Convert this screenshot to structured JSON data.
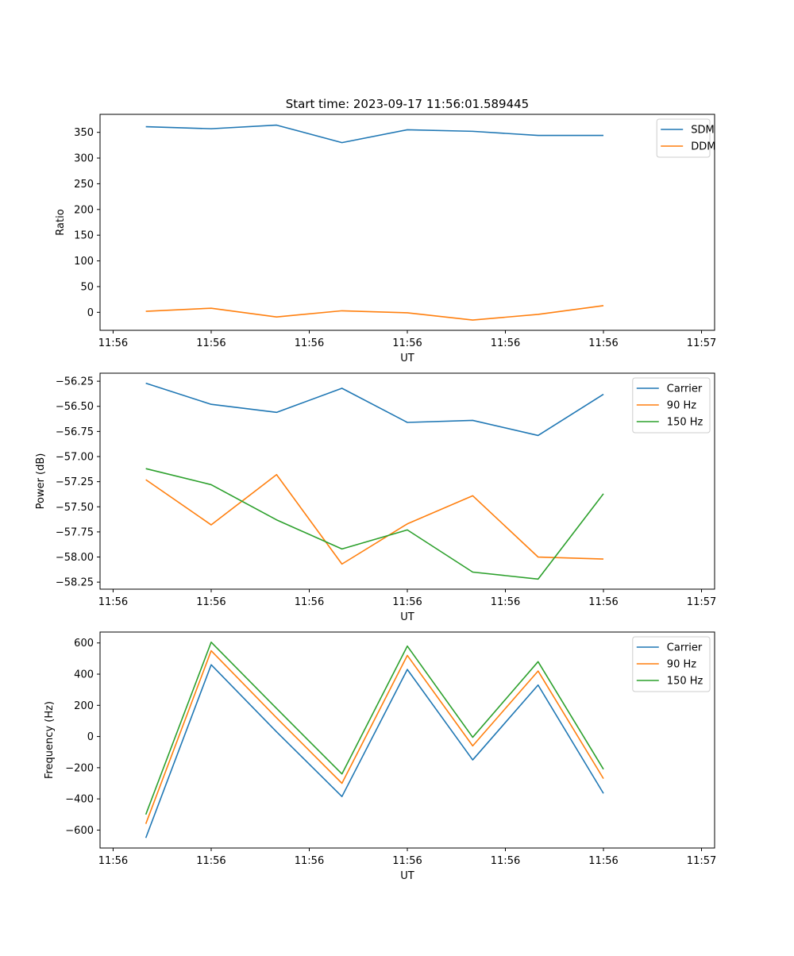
{
  "figure_title": "Start time: 2023-09-17 11:56:01.589445",
  "colors": {
    "blue": "#1f77b4",
    "orange": "#ff7f0e",
    "green": "#2ca02c"
  },
  "chart_data": [
    {
      "type": "line",
      "title": "Start time: 2023-09-17 11:56:01.589445",
      "xlabel": "UT",
      "ylabel": "Ratio",
      "x": [
        1,
        2,
        3,
        4,
        5,
        6,
        7,
        8
      ],
      "xlim": [
        0.3,
        9.7
      ],
      "xticks": [
        0.5,
        2.0,
        3.5,
        5.0,
        6.5,
        8.0,
        9.5
      ],
      "xtick_labels": [
        "11:56",
        "11:56",
        "11:56",
        "11:56",
        "11:56",
        "11:56",
        "11:57"
      ],
      "ylim": [
        -35,
        385
      ],
      "yticks": [
        0,
        50,
        100,
        150,
        200,
        250,
        300,
        350
      ],
      "ytick_labels": [
        "0",
        "50",
        "100",
        "150",
        "200",
        "250",
        "300",
        "350"
      ],
      "legend": "top-right",
      "series": [
        {
          "name": "SDM",
          "color": "#1f77b4",
          "values": [
            361,
            357,
            364,
            330,
            355,
            352,
            344,
            344
          ]
        },
        {
          "name": "DDM",
          "color": "#ff7f0e",
          "values": [
            2,
            8,
            -9,
            3,
            -1,
            -15,
            -4,
            13
          ]
        }
      ]
    },
    {
      "type": "line",
      "title": "",
      "xlabel": "UT",
      "ylabel": "Power (dB)",
      "x": [
        1,
        2,
        3,
        4,
        5,
        6,
        7,
        8
      ],
      "xlim": [
        0.3,
        9.7
      ],
      "xticks": [
        0.5,
        2.0,
        3.5,
        5.0,
        6.5,
        8.0,
        9.5
      ],
      "xtick_labels": [
        "11:56",
        "11:56",
        "11:56",
        "11:56",
        "11:56",
        "11:56",
        "11:57"
      ],
      "ylim": [
        -58.32,
        -56.17
      ],
      "yticks": [
        -58.25,
        -58.0,
        -57.75,
        -57.5,
        -57.25,
        -57.0,
        -56.75,
        -56.5,
        -56.25
      ],
      "ytick_labels": [
        "−58.25",
        "−58.00",
        "−57.75",
        "−57.50",
        "−57.25",
        "−57.00",
        "−56.75",
        "−56.50",
        "−56.25"
      ],
      "legend": "top-right",
      "series": [
        {
          "name": "Carrier",
          "color": "#1f77b4",
          "values": [
            -56.27,
            -56.48,
            -56.56,
            -56.32,
            -56.66,
            -56.64,
            -56.79,
            -56.38
          ]
        },
        {
          "name": "90 Hz",
          "color": "#ff7f0e",
          "values": [
            -57.23,
            -57.68,
            -57.18,
            -58.07,
            -57.67,
            -57.39,
            -58.0,
            -58.02
          ]
        },
        {
          "name": "150 Hz",
          "color": "#2ca02c",
          "values": [
            -57.12,
            -57.28,
            -57.63,
            -57.92,
            -57.73,
            -58.15,
            -58.22,
            -57.37
          ]
        }
      ]
    },
    {
      "type": "line",
      "title": "",
      "xlabel": "UT",
      "ylabel": "Frequency (Hz)",
      "x": [
        1,
        2,
        3,
        4,
        5,
        6,
        7,
        8
      ],
      "xlim": [
        0.3,
        9.7
      ],
      "xticks": [
        0.5,
        2.0,
        3.5,
        5.0,
        6.5,
        8.0,
        9.5
      ],
      "xtick_labels": [
        "11:56",
        "11:56",
        "11:56",
        "11:56",
        "11:56",
        "11:56",
        "11:57"
      ],
      "ylim": [
        -715,
        670
      ],
      "yticks": [
        -600,
        -400,
        -200,
        0,
        200,
        400,
        600
      ],
      "ytick_labels": [
        "−600",
        "−400",
        "−200",
        "0",
        "200",
        "400",
        "600"
      ],
      "legend": "top-right",
      "series": [
        {
          "name": "Carrier",
          "color": "#1f77b4",
          "values": [
            -650,
            460,
            30,
            -385,
            430,
            -150,
            330,
            -365
          ]
        },
        {
          "name": "90 Hz",
          "color": "#ff7f0e",
          "values": [
            -560,
            550,
            120,
            -300,
            520,
            -60,
            420,
            -270
          ]
        },
        {
          "name": "150 Hz",
          "color": "#2ca02c",
          "values": [
            -500,
            605,
            180,
            -240,
            580,
            -5,
            480,
            -210
          ]
        }
      ]
    }
  ]
}
